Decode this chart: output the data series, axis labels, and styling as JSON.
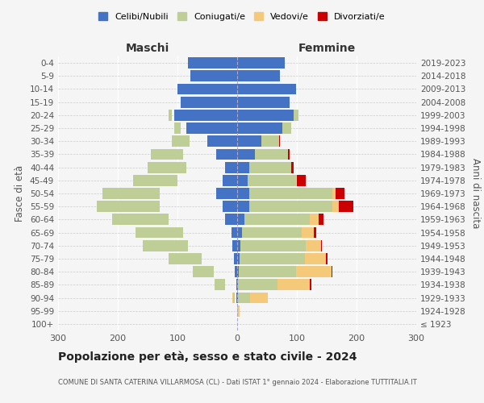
{
  "age_groups": [
    "100+",
    "95-99",
    "90-94",
    "85-89",
    "80-84",
    "75-79",
    "70-74",
    "65-69",
    "60-64",
    "55-59",
    "50-54",
    "45-49",
    "40-44",
    "35-39",
    "30-34",
    "25-29",
    "20-24",
    "15-19",
    "10-14",
    "5-9",
    "0-4"
  ],
  "birth_years": [
    "≤ 1923",
    "1924-1928",
    "1929-1933",
    "1934-1938",
    "1939-1943",
    "1944-1948",
    "1949-1953",
    "1954-1958",
    "1959-1963",
    "1964-1968",
    "1969-1973",
    "1974-1978",
    "1979-1983",
    "1984-1988",
    "1989-1993",
    "1994-1998",
    "1999-2003",
    "2004-2008",
    "2009-2013",
    "2014-2018",
    "2019-2023"
  ],
  "male": {
    "celibi": [
      0,
      0,
      1,
      2,
      4,
      5,
      8,
      10,
      20,
      25,
      35,
      25,
      20,
      35,
      50,
      85,
      105,
      95,
      100,
      78,
      82
    ],
    "coniugati": [
      0,
      0,
      3,
      18,
      35,
      55,
      75,
      80,
      95,
      105,
      95,
      75,
      65,
      55,
      30,
      10,
      5,
      0,
      0,
      0,
      0
    ],
    "vedovi": [
      0,
      0,
      2,
      3,
      5,
      5,
      5,
      5,
      3,
      2,
      1,
      0,
      0,
      0,
      0,
      0,
      2,
      0,
      0,
      0,
      0
    ],
    "divorziati": [
      0,
      0,
      0,
      2,
      2,
      3,
      2,
      8,
      5,
      8,
      8,
      8,
      3,
      2,
      2,
      0,
      0,
      0,
      0,
      0,
      0
    ]
  },
  "female": {
    "nubili": [
      0,
      0,
      1,
      2,
      3,
      4,
      5,
      8,
      12,
      20,
      20,
      18,
      20,
      30,
      40,
      75,
      95,
      88,
      98,
      72,
      80
    ],
    "coniugate": [
      0,
      2,
      20,
      65,
      95,
      110,
      110,
      100,
      110,
      140,
      140,
      80,
      70,
      55,
      30,
      15,
      8,
      0,
      0,
      0,
      0
    ],
    "vedove": [
      0,
      2,
      30,
      55,
      60,
      35,
      25,
      20,
      15,
      10,
      5,
      2,
      0,
      0,
      0,
      0,
      0,
      0,
      0,
      0,
      0
    ],
    "divorziate": [
      0,
      0,
      0,
      2,
      2,
      3,
      2,
      5,
      8,
      25,
      15,
      15,
      5,
      3,
      2,
      0,
      0,
      0,
      0,
      0,
      0
    ]
  },
  "colors": {
    "celibi": "#4472C4",
    "coniugati": "#BFCD96",
    "vedovi": "#F5C97A",
    "divorziati": "#CC0000"
  },
  "xlim": 300,
  "title": "Popolazione per età, sesso e stato civile - 2024",
  "subtitle": "COMUNE DI SANTA CATERINA VILLARMOSA (CL) - Dati ISTAT 1° gennaio 2024 - Elaborazione TUTTITALIA.IT",
  "ylabel_left": "Fasce di età",
  "ylabel_right": "Anni di nascita",
  "xlabel_left": "Maschi",
  "xlabel_right": "Femmine",
  "background_color": "#f5f5f5",
  "legend_labels": [
    "Celibi/Nubili",
    "Coniugati/e",
    "Vedovi/e",
    "Divorziati/e"
  ]
}
